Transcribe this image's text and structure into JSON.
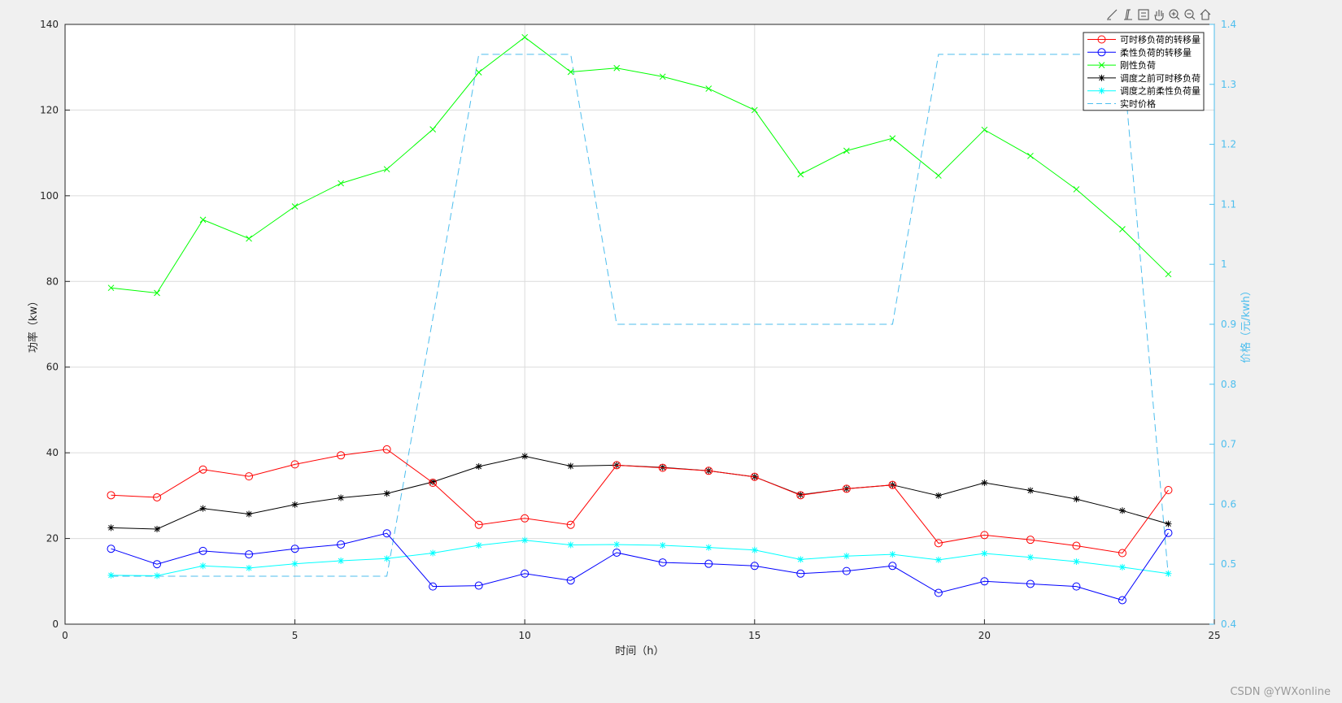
{
  "toolbar": {
    "icons": [
      "brush-icon",
      "data-tip-icon",
      "legend-toggle-icon",
      "pan-hand-icon",
      "zoom-in-icon",
      "zoom-out-icon",
      "home-icon"
    ]
  },
  "watermark": "CSDN @YWXonline",
  "chart_data": {
    "type": "line",
    "xlabel": "时间（h）",
    "ylabel": "功率（kw）",
    "y2label": "价格（元/kwh）",
    "xlim": [
      0,
      25
    ],
    "ylim": [
      0,
      140
    ],
    "y2lim": [
      0.4,
      1.4
    ],
    "xticks": [
      0,
      5,
      10,
      15,
      20,
      25
    ],
    "yticks": [
      0,
      20,
      40,
      60,
      80,
      100,
      120,
      140
    ],
    "y2ticks": [
      0.4,
      0.5,
      0.6,
      0.7,
      0.8,
      0.9,
      1,
      1.1,
      1.2,
      1.3,
      1.4
    ],
    "grid": true,
    "legend_position": "top-right",
    "x": [
      1,
      2,
      3,
      4,
      5,
      6,
      7,
      8,
      9,
      10,
      11,
      12,
      13,
      14,
      15,
      16,
      17,
      18,
      19,
      20,
      21,
      22,
      23,
      24
    ],
    "series": [
      {
        "name": "可时移负荷的转移量",
        "color": "#ff0000",
        "marker": "circle",
        "axis": "left",
        "dashed": false,
        "values": [
          30.1,
          29.6,
          36.1,
          34.5,
          37.3,
          39.4,
          40.8,
          33.0,
          23.2,
          24.7,
          23.2,
          37.1,
          36.5,
          35.8,
          34.4,
          30.1,
          31.6,
          32.5,
          18.9,
          20.8,
          19.7,
          18.3,
          16.6,
          31.3
        ]
      },
      {
        "name": "柔性负荷的转移量",
        "color": "#0000ff",
        "marker": "circle",
        "axis": "left",
        "dashed": false,
        "values": [
          17.6,
          14.0,
          17.1,
          16.3,
          17.6,
          18.6,
          21.2,
          8.8,
          9.0,
          11.8,
          10.2,
          16.7,
          14.4,
          14.1,
          13.6,
          11.8,
          12.4,
          13.6,
          7.3,
          10.0,
          9.4,
          8.8,
          5.6,
          21.3
        ]
      },
      {
        "name": "刚性负荷",
        "color": "#00ff00",
        "marker": "x",
        "axis": "left",
        "dashed": false,
        "values": [
          78.5,
          77.3,
          94.4,
          90.0,
          97.5,
          102.9,
          106.2,
          115.5,
          128.8,
          137.0,
          128.9,
          129.8,
          127.8,
          125.0,
          120.0,
          105.0,
          110.5,
          113.4,
          104.7,
          115.4,
          109.3,
          101.5,
          92.2,
          81.7
        ]
      },
      {
        "name": "调度之前可时移负荷",
        "color": "#000000",
        "marker": "star",
        "axis": "left",
        "dashed": false,
        "values": [
          22.5,
          22.2,
          27.0,
          25.7,
          27.9,
          29.5,
          30.5,
          33.2,
          36.8,
          39.2,
          36.9,
          37.1,
          36.6,
          35.8,
          34.4,
          30.2,
          31.6,
          32.5,
          30.0,
          33.0,
          31.2,
          29.2,
          26.5,
          23.4
        ]
      },
      {
        "name": "调度之前柔性负荷量",
        "color": "#00ffff",
        "marker": "star",
        "axis": "left",
        "dashed": false,
        "values": [
          11.4,
          11.3,
          13.6,
          13.1,
          14.1,
          14.8,
          15.3,
          16.6,
          18.4,
          19.6,
          18.5,
          18.6,
          18.4,
          17.9,
          17.3,
          15.1,
          15.9,
          16.3,
          15.0,
          16.5,
          15.6,
          14.6,
          13.3,
          11.8
        ]
      },
      {
        "name": "实时价格",
        "color": "#4dbeee",
        "marker": "none",
        "axis": "right",
        "dashed": true,
        "values": [
          0.48,
          0.48,
          0.48,
          0.48,
          0.48,
          0.48,
          0.48,
          0.91,
          1.35,
          1.35,
          1.35,
          0.9,
          0.9,
          0.9,
          0.9,
          0.9,
          0.9,
          0.9,
          1.35,
          1.35,
          1.35,
          1.35,
          1.35,
          0.48
        ]
      }
    ]
  }
}
